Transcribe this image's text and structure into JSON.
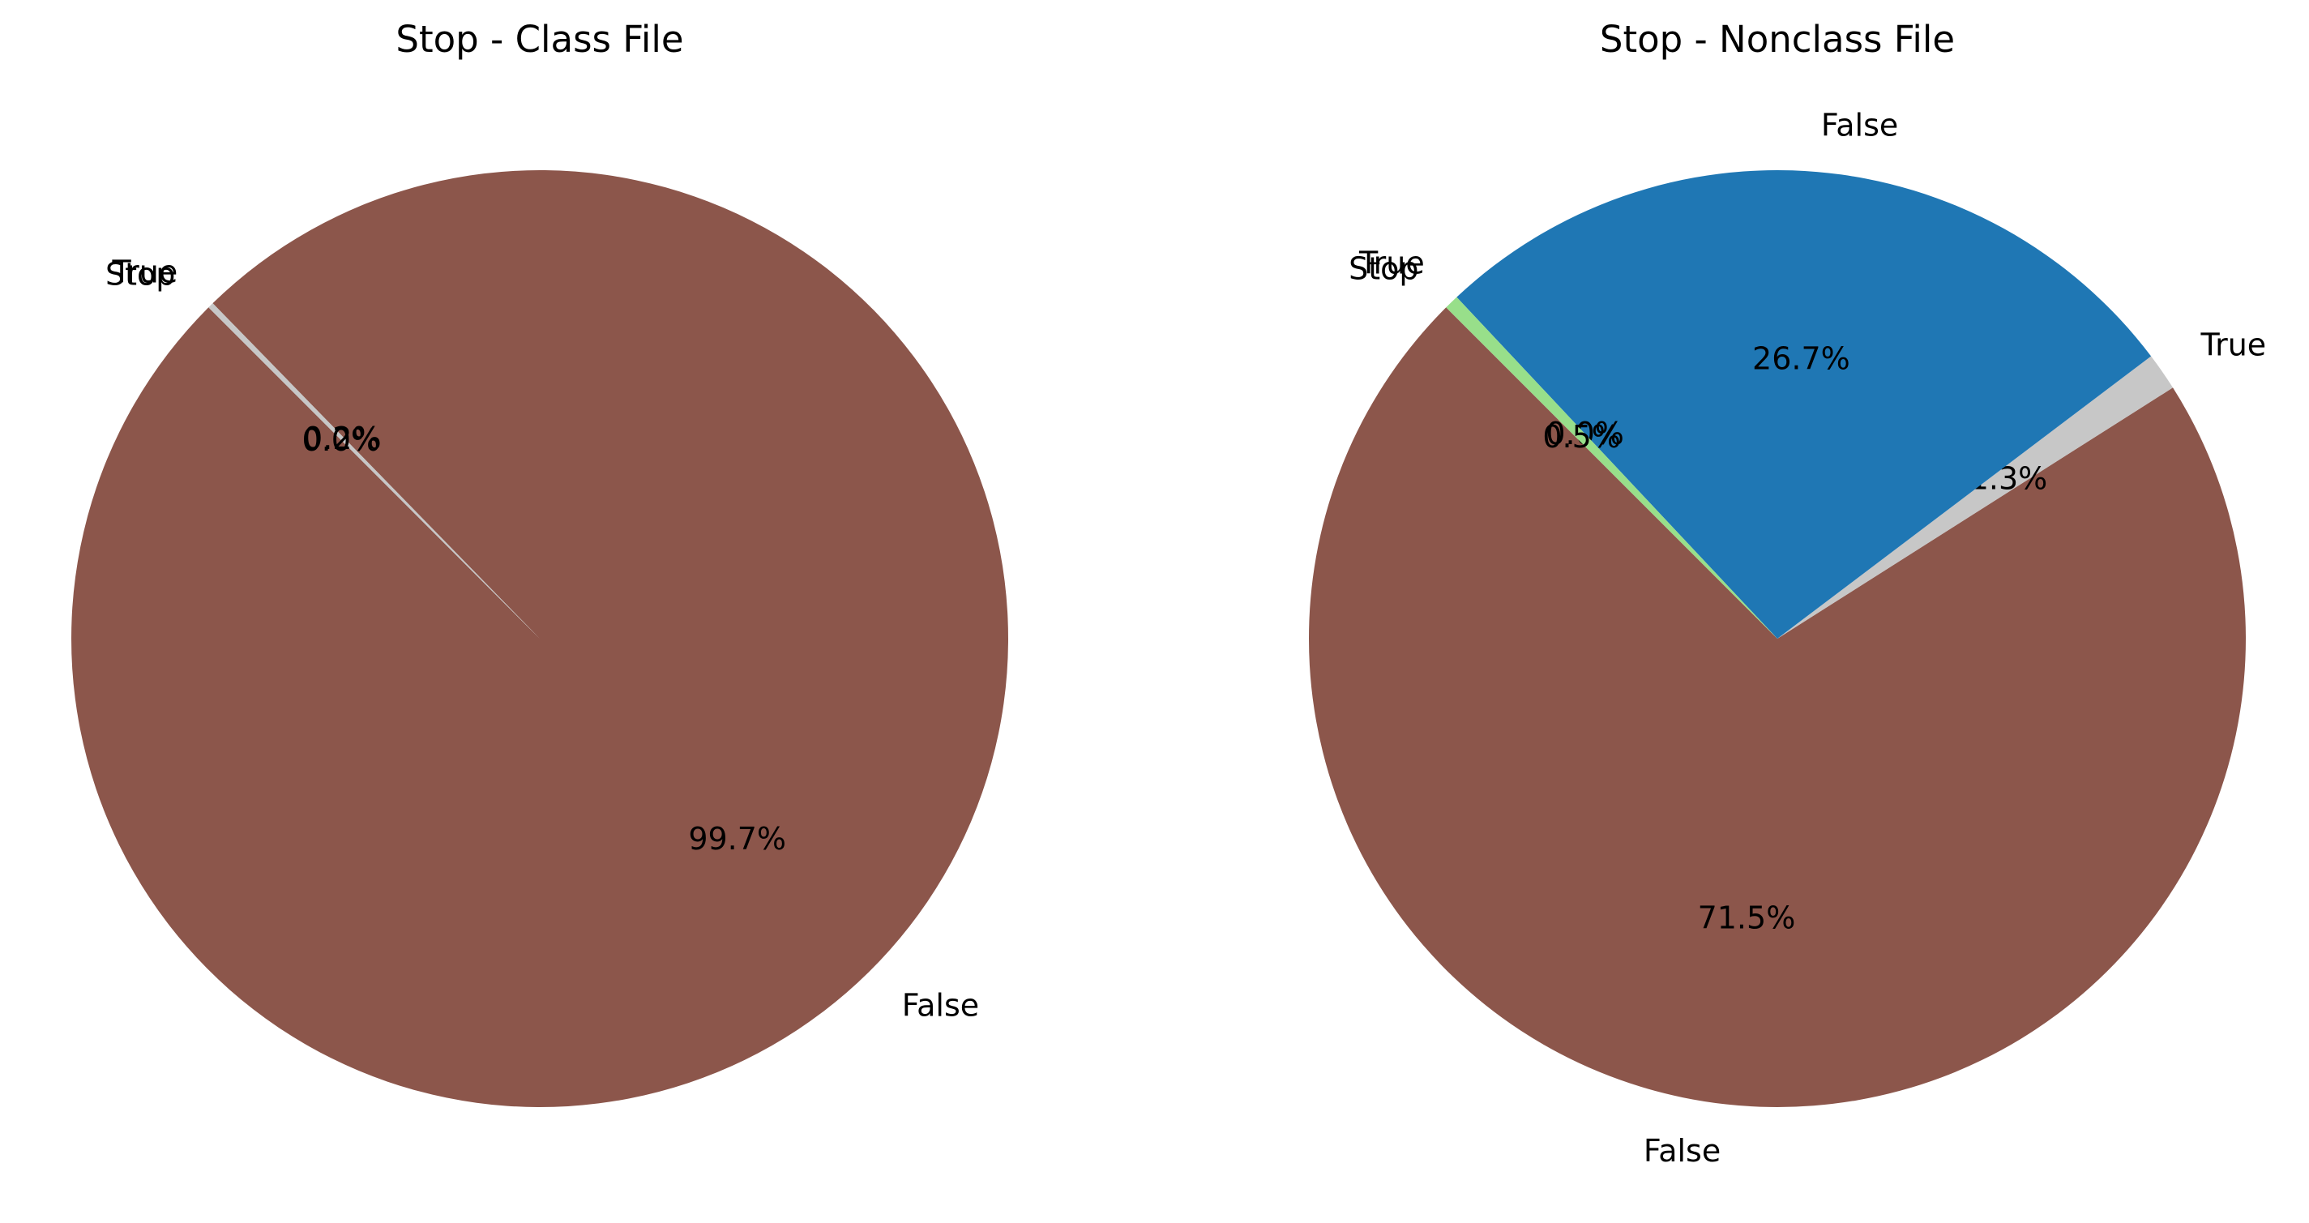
{
  "chart_data": [
    {
      "type": "pie",
      "title": "Stop - Class File",
      "start_angle_deg": 135,
      "slices": [
        {
          "label": "False",
          "value": 99.7,
          "pct_label": "99.7%",
          "color": "#8c564b"
        },
        {
          "label": "True",
          "value": 0.2,
          "pct_label": "0.2%",
          "color": "#c7c7c7"
        },
        {
          "label": "Stop",
          "value": 0.0,
          "pct_label": "0.0%",
          "color": "#98df8a"
        }
      ]
    },
    {
      "type": "pie",
      "title": "Stop - Nonclass File",
      "start_angle_deg": 135,
      "slices": [
        {
          "label": "False",
          "value": 71.5,
          "pct_label": "71.5%",
          "color": "#8c564b"
        },
        {
          "label": "True",
          "value": 1.3,
          "pct_label": "1.3%",
          "color": "#c7c7c7"
        },
        {
          "label": "False",
          "value": 26.7,
          "pct_label": "26.7%",
          "color": "#1f77b4"
        },
        {
          "label": "True",
          "value": 0.0,
          "pct_label": "0.0%",
          "color": "#aec7e8"
        },
        {
          "label": "Stop",
          "value": 0.5,
          "pct_label": "0.5%",
          "color": "#98df8a"
        }
      ]
    }
  ]
}
